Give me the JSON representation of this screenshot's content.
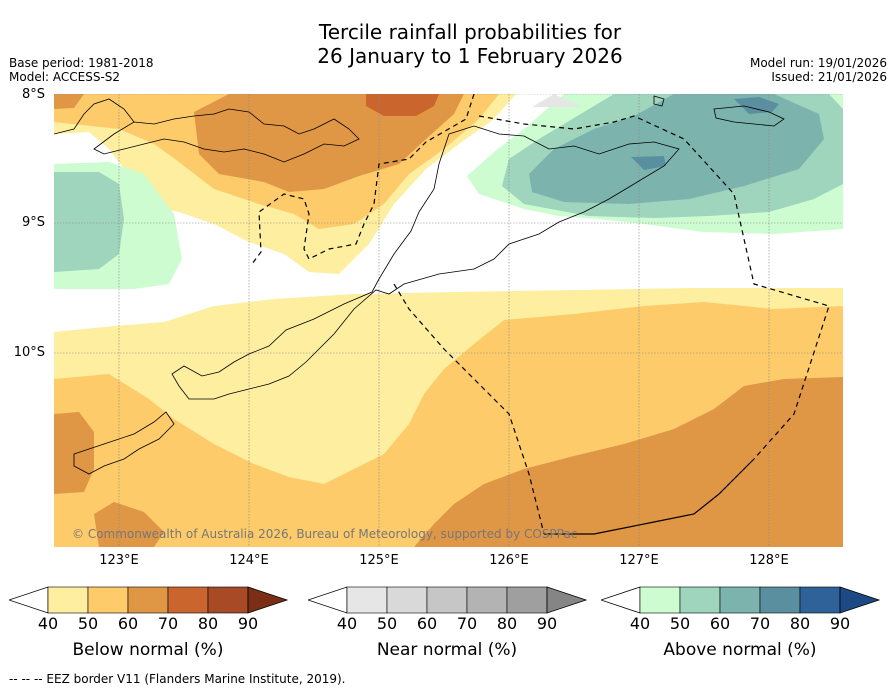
{
  "title_line1": "Tercile rainfall probabilities for",
  "title_line2": "26 January to 1 February 2026",
  "meta_left": {
    "base_period": "Base period: 1981-2018",
    "model": "Model: ACCESS-S2"
  },
  "meta_right": {
    "model_run": "Model run: 19/01/2026",
    "issued": "Issued: 21/01/2026"
  },
  "lat_labels": [
    "8°S",
    "9°S",
    "10°S"
  ],
  "lon_labels": [
    "123°E",
    "124°E",
    "125°E",
    "126°E",
    "127°E",
    "128°E"
  ],
  "copyright": "© Commonwealth of Australia 2026, Bureau of Meteorology, supported by COSPPac",
  "colorbars": [
    {
      "name": "below",
      "title": "Below normal (%)",
      "ticks": [
        "40",
        "50",
        "60",
        "70",
        "80",
        "90"
      ],
      "colors": [
        "#fdeea0",
        "#fdcb6a",
        "#df9645",
        "#c9652d",
        "#a84a25",
        "#7a2e15"
      ]
    },
    {
      "name": "near",
      "title": "Near normal (%)",
      "ticks": [
        "40",
        "50",
        "60",
        "70",
        "80",
        "90"
      ],
      "colors": [
        "#e6e6e6",
        "#d9d9d9",
        "#c6c6c6",
        "#b3b3b3",
        "#9f9f9f",
        "#858585"
      ]
    },
    {
      "name": "above",
      "title": "Above normal (%)",
      "ticks": [
        "40",
        "50",
        "60",
        "70",
        "80",
        "90"
      ],
      "colors": [
        "#ccfccf",
        "#9fd4bd",
        "#7cb4ad",
        "#5a8fa0",
        "#2e6299",
        "#1d4a85"
      ]
    }
  ],
  "footer": "--  --  -- EEZ border V11 (Flanders Marine Institute, 2019)."
}
